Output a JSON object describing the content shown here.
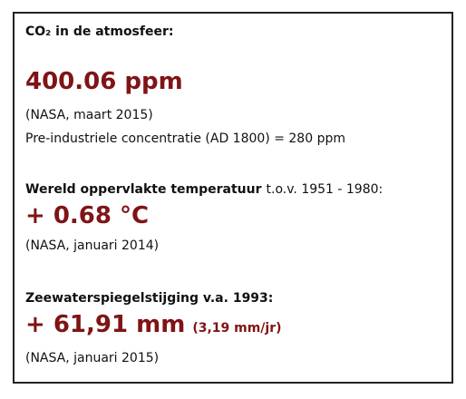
{
  "sections": [
    {
      "heading": "CO₂ in de atmosfeer:",
      "value": "400.06 ppm",
      "source": "(NASA, maart 2015)",
      "note": "Pre-industriele concentratie (AD 1800) = 280 ppm"
    },
    {
      "heading": "Wereld oppervlakte temperatuur",
      "heading_suffix": "t.o.v. 1951 - 1980:",
      "value": "+ 0.68 °C",
      "source": "(NASA, januari 2014)"
    },
    {
      "heading": "Zeewaterspiegelstijging v.a. 1993:",
      "value": "+ 61,91 mm",
      "rate": "(3,19 mm/jr)",
      "source": "(NASA, januari 2015)"
    }
  ]
}
